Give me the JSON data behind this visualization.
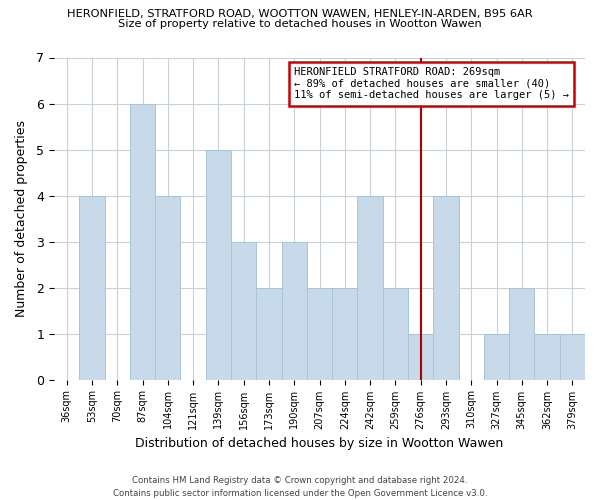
{
  "title_line1": "HERONFIELD, STRATFORD ROAD, WOOTTON WAWEN, HENLEY-IN-ARDEN, B95 6AR",
  "title_line2": "Size of property relative to detached houses in Wootton Wawen",
  "xlabel": "Distribution of detached houses by size in Wootton Wawen",
  "ylabel": "Number of detached properties",
  "bin_labels": [
    "36sqm",
    "53sqm",
    "70sqm",
    "87sqm",
    "104sqm",
    "121sqm",
    "139sqm",
    "156sqm",
    "173sqm",
    "190sqm",
    "207sqm",
    "224sqm",
    "242sqm",
    "259sqm",
    "276sqm",
    "293sqm",
    "310sqm",
    "327sqm",
    "345sqm",
    "362sqm",
    "379sqm"
  ],
  "bar_heights": [
    0,
    4,
    0,
    6,
    4,
    0,
    5,
    3,
    2,
    3,
    2,
    2,
    4,
    2,
    1,
    4,
    0,
    1,
    2,
    1,
    1
  ],
  "bar_color": "#c8d9ea",
  "bar_edge_color": "#a8c4d8",
  "ylim": [
    0,
    7
  ],
  "yticks": [
    0,
    1,
    2,
    3,
    4,
    5,
    6,
    7
  ],
  "marker_color": "#aa0000",
  "annotation_title": "HERONFIELD STRATFORD ROAD: 269sqm",
  "annotation_line1": "← 89% of detached houses are smaller (40)",
  "annotation_line2": "11% of semi-detached houses are larger (5) →",
  "footer_line1": "Contains HM Land Registry data © Crown copyright and database right 2024.",
  "footer_line2": "Contains public sector information licensed under the Open Government Licence v3.0.",
  "background_color": "#ffffff",
  "grid_color": "#c8d0d8"
}
